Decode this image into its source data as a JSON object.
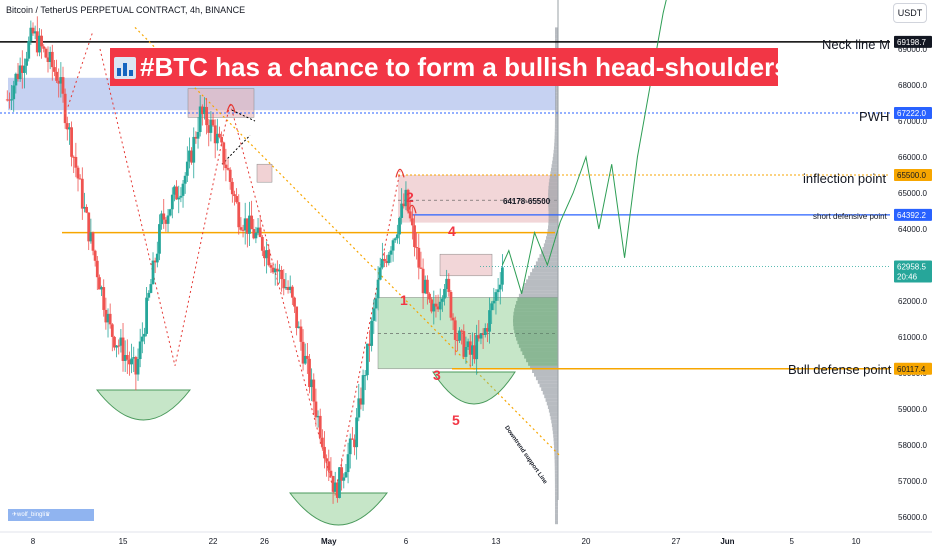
{
  "header": {
    "symbol": "Bitcoin / TetherUS PERPETUAL CONTRACT, 4h, BINANCE",
    "currency": "USDT"
  },
  "banner": {
    "title": "#BTC has a chance to form a bullish head-shoulders"
  },
  "author_tag": "✈wolf_bingli♛",
  "annotations": {
    "neck_line": "Neck line M",
    "pwh": "PWH",
    "inflection": "inflection point",
    "short_defense": "short defensive point",
    "bull_defense": "Bull defense point",
    "range_label": "64178-65500",
    "downtrend": "Downtrend support Line",
    "n1": "1",
    "n2": "2",
    "n3": "3",
    "n4": "4",
    "n5": "5"
  },
  "price_badges": {
    "neck": "69198.7",
    "pwh": "67222.0",
    "inflection": "65500.0",
    "short_def": "64392.2",
    "current": "62958.5",
    "countdown": "20:46",
    "bull_def": "60117.4"
  },
  "colors": {
    "bull": "#26a69a",
    "bear": "#ef5350",
    "banner": "#f23645",
    "neck_line": "#000000",
    "pwh_line": "#2962ff",
    "inflection_line": "#f7a600",
    "short_def_line": "#2962ff",
    "bull_def_line": "#f7a600"
  },
  "chart_data": {
    "type": "candlestick",
    "title": "Bitcoin / TetherUS PERPETUAL CONTRACT, 4h, BINANCE",
    "ylim": [
      55600,
      69600
    ],
    "y_ticks": [
      56000,
      57000,
      58000,
      59000,
      60000,
      61000,
      62000,
      63000,
      64000,
      65000,
      66000,
      67000,
      68000,
      69000
    ],
    "x_ticks": [
      "8",
      "15",
      "22",
      "26",
      "May",
      "6",
      "13",
      "20",
      "27",
      "Jun",
      "5",
      "10"
    ],
    "x_tick_day": [
      8,
      15,
      22,
      26,
      31,
      37,
      44,
      51,
      58,
      62,
      67,
      72
    ],
    "levels": [
      {
        "name": "Neck line M",
        "price": 69198.7
      },
      {
        "name": "PWH",
        "price": 67222.0
      },
      {
        "name": "inflection point",
        "price": 65500.0
      },
      {
        "name": "short defensive point",
        "price": 64392.2
      },
      {
        "name": "Bull defense point",
        "price": 60117.4
      }
    ],
    "path_days": [
      6,
      8,
      10,
      12,
      14,
      16,
      18,
      20,
      21,
      22,
      23,
      24,
      26,
      28,
      30,
      31.5,
      33,
      35,
      36,
      37,
      38,
      39,
      40,
      41,
      42,
      43,
      44,
      44.5
    ],
    "path_prices": [
      67600,
      69400,
      68200,
      64500,
      61200,
      60000,
      64200,
      65600,
      67200,
      66800,
      65800,
      64400,
      63500,
      62200,
      59000,
      56700,
      58200,
      62800,
      63800,
      64800,
      63000,
      61500,
      62600,
      61000,
      60500,
      61000,
      62200,
      63000
    ],
    "projection_days": [
      44.5,
      45,
      46,
      47,
      48,
      49,
      50,
      51,
      52,
      53,
      54,
      55,
      56,
      57,
      58
    ],
    "projection_prices": [
      63000,
      63400,
      62200,
      63900,
      63000,
      64200,
      65000,
      66000,
      64000,
      65800,
      63200,
      66000,
      68000,
      70000,
      71500
    ],
    "current_price": 62958.5
  }
}
